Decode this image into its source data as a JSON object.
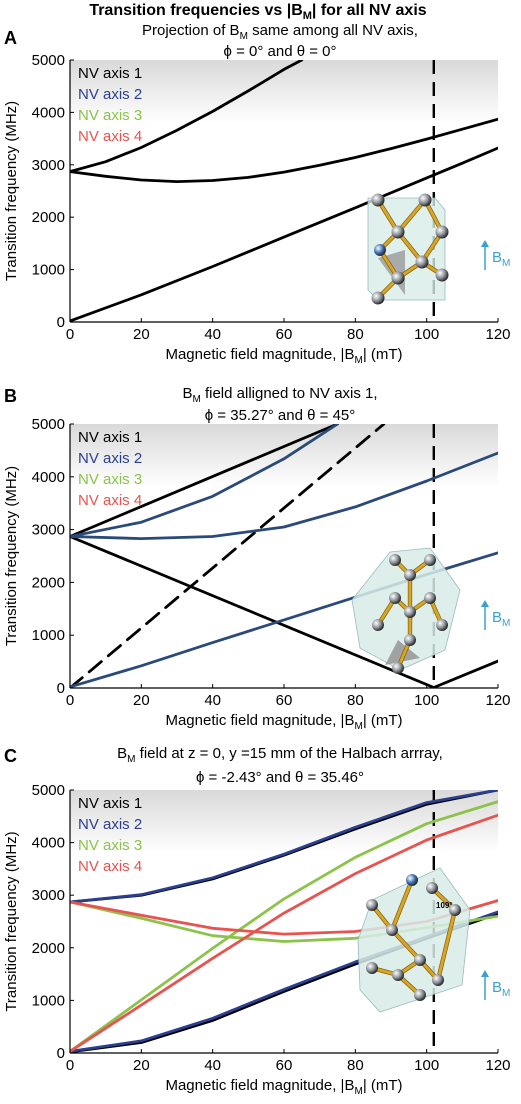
{
  "figure_title": {
    "pre": "Transition frequencies vs |B",
    "sub": "M",
    "post": "| for all NV axis"
  },
  "xlabel": {
    "pre": "Magnetic field magnitude, |B",
    "sub": "M",
    "post": "| (mT)"
  },
  "ylabel": "Transition frequency (MHz)",
  "bm_label": {
    "main": "B",
    "sub": "M"
  },
  "legend": [
    "NV axis 1",
    "NV axis 2",
    "NV axis 3",
    "NV axis 4"
  ],
  "colors": {
    "NV axis 1": "#000000",
    "NV axis 2": "#2b3f8f",
    "NV axis 3": "#8cc34a",
    "NV axis 4": "#e8534f",
    "panelB_curves": "#2a4a7a",
    "arrow": "#3aa0d0",
    "stick": "#d8a528",
    "atom": "#8a8f96",
    "nitrogen": "#3f6fb5",
    "cube_fill": "#d8ece8"
  },
  "chart_data": [
    {
      "panel": "A",
      "type": "line",
      "subtitle_line1": {
        "pre": "Projection of B",
        "sub": "M",
        "post": " same among all NV axis,"
      },
      "subtitle_line2": "ϕ = 0° and θ = 0°",
      "xlim": [
        0,
        120
      ],
      "ylim": [
        0,
        5000
      ],
      "xticks": [
        0,
        20,
        40,
        60,
        80,
        100,
        120
      ],
      "yticks": [
        0,
        1000,
        2000,
        3000,
        4000,
        5000
      ],
      "dashed_vline_x": 102,
      "series": [
        {
          "name": "NV axis 1",
          "values": [
            [
              0,
              2870
            ],
            [
              10,
              3060
            ],
            [
              20,
              3330
            ],
            [
              30,
              3660
            ],
            [
              40,
              4020
            ],
            [
              50,
              4410
            ],
            [
              60,
              4820
            ],
            [
              65,
              5000
            ]
          ]
        },
        {
          "name": "NV axis 1",
          "values": [
            [
              0,
              2870
            ],
            [
              10,
              2780
            ],
            [
              20,
              2710
            ],
            [
              30,
              2680
            ],
            [
              40,
              2700
            ],
            [
              50,
              2760
            ],
            [
              60,
              2860
            ],
            [
              70,
              2990
            ],
            [
              80,
              3140
            ],
            [
              90,
              3310
            ],
            [
              100,
              3490
            ],
            [
              110,
              3680
            ],
            [
              120,
              3870
            ]
          ]
        },
        {
          "name": "NV axis 1",
          "values": [
            [
              0,
              20
            ],
            [
              20,
              520
            ],
            [
              40,
              1060
            ],
            [
              60,
              1620
            ],
            [
              80,
              2180
            ],
            [
              100,
              2750
            ],
            [
              110,
              3030
            ],
            [
              120,
              3320
            ]
          ]
        }
      ]
    },
    {
      "panel": "B",
      "type": "line",
      "subtitle_line1": {
        "pre": "B",
        "sub": "M",
        "post": " field alligned to NV axis 1,"
      },
      "subtitle_line2": "ϕ = 35.27° and θ = 45°",
      "xlim": [
        0,
        120
      ],
      "ylim": [
        0,
        5000
      ],
      "xticks": [
        0,
        20,
        40,
        60,
        80,
        100,
        120
      ],
      "yticks": [
        0,
        1000,
        2000,
        3000,
        4000,
        5000
      ],
      "dashed_vline_x": 102,
      "series": [
        {
          "name": "NV axis 1",
          "values": [
            [
              0,
              2870
            ],
            [
              75,
              5000
            ]
          ]
        },
        {
          "name": "NV axis 1",
          "values": [
            [
              0,
              2870
            ],
            [
              102,
              10
            ],
            [
              120,
              510
            ]
          ]
        },
        {
          "name": "",
          "dashed": true,
          "values": [
            [
              0,
              0
            ],
            [
              88,
              5000
            ]
          ]
        },
        {
          "name": "",
          "values": [
            [
              0,
              2870
            ],
            [
              20,
              3140
            ],
            [
              40,
              3630
            ],
            [
              60,
              4340
            ],
            [
              70,
              4780
            ],
            [
              75,
              5000
            ]
          ]
        },
        {
          "name": "",
          "values": [
            [
              0,
              2870
            ],
            [
              20,
              2830
            ],
            [
              40,
              2870
            ],
            [
              60,
              3050
            ],
            [
              80,
              3430
            ],
            [
              100,
              3920
            ],
            [
              120,
              4450
            ]
          ]
        },
        {
          "name": "",
          "values": [
            [
              0,
              20
            ],
            [
              20,
              420
            ],
            [
              40,
              860
            ],
            [
              60,
              1290
            ],
            [
              80,
              1720
            ],
            [
              100,
              2150
            ],
            [
              120,
              2560
            ]
          ]
        }
      ]
    },
    {
      "panel": "C",
      "type": "line",
      "subtitle_line1": {
        "pre": "B",
        "sub": "M",
        "post": " field at z = 0, y =15 mm of the Halbach arrray,"
      },
      "subtitle_line2": "ϕ = -2.43° and θ = 35.46°",
      "xlim": [
        0,
        120
      ],
      "ylim": [
        0,
        5000
      ],
      "xticks": [
        0,
        20,
        40,
        60,
        80,
        100,
        120
      ],
      "yticks": [
        0,
        1000,
        2000,
        3000,
        4000,
        5000
      ],
      "dashed_vline_x": 102,
      "series": [
        {
          "name": "NV axis 1",
          "values": [
            [
              0,
              2870
            ],
            [
              20,
              3000
            ],
            [
              40,
              3310
            ],
            [
              60,
              3760
            ],
            [
              80,
              4260
            ],
            [
              100,
              4730
            ],
            [
              120,
              5000
            ]
          ]
        },
        {
          "name": "NV axis 1",
          "values": [
            [
              0,
              20
            ],
            [
              20,
              200
            ],
            [
              40,
              620
            ],
            [
              60,
              1170
            ],
            [
              80,
              1690
            ],
            [
              100,
              2180
            ],
            [
              120,
              2650
            ]
          ]
        },
        {
          "name": "NV axis 2",
          "values": [
            [
              0,
              2870
            ],
            [
              20,
              3010
            ],
            [
              40,
              3330
            ],
            [
              60,
              3780
            ],
            [
              80,
              4290
            ],
            [
              100,
              4760
            ],
            [
              120,
              5000
            ]
          ]
        },
        {
          "name": "NV axis 2",
          "values": [
            [
              0,
              30
            ],
            [
              20,
              230
            ],
            [
              40,
              660
            ],
            [
              60,
              1210
            ],
            [
              80,
              1730
            ],
            [
              100,
              2210
            ],
            [
              120,
              2680
            ]
          ]
        },
        {
          "name": "NV axis 3",
          "values": [
            [
              0,
              2870
            ],
            [
              20,
              2560
            ],
            [
              40,
              2230
            ],
            [
              60,
              2120
            ],
            [
              80,
              2180
            ],
            [
              100,
              2380
            ],
            [
              120,
              2600
            ]
          ]
        },
        {
          "name": "NV axis 3",
          "values": [
            [
              0,
              30
            ],
            [
              20,
              1010
            ],
            [
              40,
              1990
            ],
            [
              60,
              2930
            ],
            [
              80,
              3720
            ],
            [
              100,
              4360
            ],
            [
              120,
              4780
            ]
          ]
        },
        {
          "name": "NV axis 4",
          "values": [
            [
              0,
              2870
            ],
            [
              20,
              2620
            ],
            [
              40,
              2370
            ],
            [
              60,
              2260
            ],
            [
              80,
              2310
            ],
            [
              100,
              2500
            ],
            [
              120,
              2900
            ]
          ]
        },
        {
          "name": "NV axis 4",
          "values": [
            [
              0,
              30
            ],
            [
              20,
              910
            ],
            [
              40,
              1800
            ],
            [
              60,
              2660
            ],
            [
              80,
              3410
            ],
            [
              100,
              4050
            ],
            [
              120,
              4520
            ]
          ]
        }
      ]
    }
  ]
}
